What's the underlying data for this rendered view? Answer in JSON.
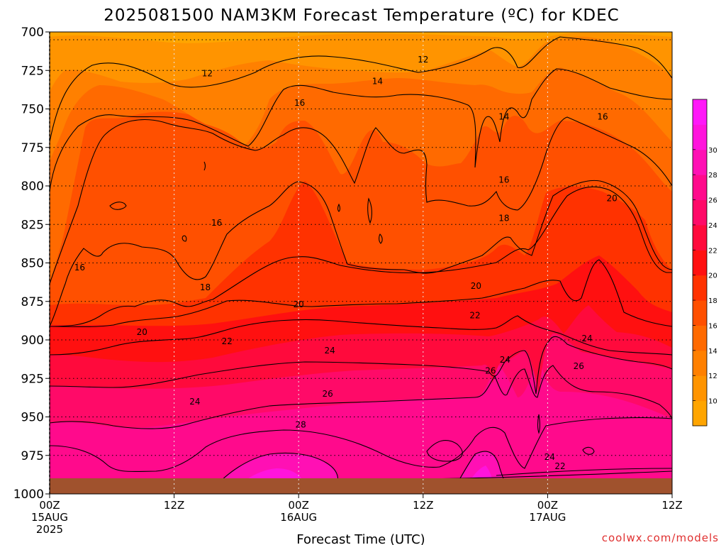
{
  "title": "2025081500 NAM3KM Forecast Temperature (ºC) for KDEC",
  "credit": "coolwx.com/models",
  "chart_data": {
    "type": "heatmap",
    "title": "2025081500 NAM3KM Forecast Temperature (ºC) for KDEC",
    "xlabel": "Forecast Time (UTC)",
    "ylabel": "",
    "x_ticks": [
      {
        "hour": 0,
        "line1": "00Z",
        "line2": "15AUG",
        "line3": "2025"
      },
      {
        "hour": 12,
        "line1": "12Z",
        "line2": "",
        "line3": ""
      },
      {
        "hour": 24,
        "line1": "00Z",
        "line2": "16AUG",
        "line3": ""
      },
      {
        "hour": 36,
        "line1": "12Z",
        "line2": "",
        "line3": ""
      },
      {
        "hour": 48,
        "line1": "00Z",
        "line2": "17AUG",
        "line3": ""
      },
      {
        "hour": 60,
        "line1": "12Z",
        "line2": "",
        "line3": ""
      }
    ],
    "xlim": [
      0,
      60
    ],
    "y_ticks": [
      700,
      725,
      750,
      775,
      800,
      825,
      850,
      875,
      900,
      925,
      950,
      975,
      1000
    ],
    "ylim": [
      700,
      1000
    ],
    "grid": true,
    "colorbar": {
      "ticks": [
        10,
        12,
        14,
        16,
        18,
        20,
        22,
        24,
        26,
        28,
        30
      ],
      "colors": [
        "#ffa500",
        "#ff9400",
        "#ff8000",
        "#ff6a00",
        "#ff5000",
        "#ff3200",
        "#ff1010",
        "#ff0a3c",
        "#ff0a68",
        "#ff0a8c",
        "#ff10b4",
        "#ff14dc",
        "#ff18f8"
      ]
    },
    "contour_labels": [
      {
        "value": 12,
        "hour": 15.2,
        "p": 727
      },
      {
        "value": 12,
        "hour": 36.0,
        "p": 718
      },
      {
        "value": 14,
        "hour": 31.6,
        "p": 732
      },
      {
        "value": 14,
        "hour": 43.8,
        "p": 755
      },
      {
        "value": 16,
        "hour": 24.1,
        "p": 746
      },
      {
        "value": 16,
        "hour": 53.3,
        "p": 755
      },
      {
        "value": 16,
        "hour": 43.8,
        "p": 796
      },
      {
        "value": 16,
        "hour": 16.1,
        "p": 824
      },
      {
        "value": 16,
        "hour": 2.9,
        "p": 853
      },
      {
        "value": 18,
        "hour": 43.8,
        "p": 821
      },
      {
        "value": 18,
        "hour": 15.0,
        "p": 866
      },
      {
        "value": 20,
        "hour": 54.2,
        "p": 808
      },
      {
        "value": 20,
        "hour": 41.1,
        "p": 865
      },
      {
        "value": 20,
        "hour": 24.0,
        "p": 877
      },
      {
        "value": 20,
        "hour": 8.9,
        "p": 895
      },
      {
        "value": 22,
        "hour": 41.0,
        "p": 884
      },
      {
        "value": 22,
        "hour": 17.1,
        "p": 901
      },
      {
        "value": 24,
        "hour": 27.0,
        "p": 907
      },
      {
        "value": 24,
        "hour": 51.8,
        "p": 899
      },
      {
        "value": 24,
        "hour": 43.9,
        "p": 913
      },
      {
        "value": 24,
        "hour": 14.0,
        "p": 940
      },
      {
        "value": 24,
        "hour": 48.2,
        "p": 976
      },
      {
        "value": 26,
        "hour": 42.5,
        "p": 920
      },
      {
        "value": 26,
        "hour": 51.0,
        "p": 917
      },
      {
        "value": 26,
        "hour": 26.8,
        "p": 935
      },
      {
        "value": 28,
        "hour": 24.2,
        "p": 955
      },
      {
        "value": 22,
        "hour": 49.2,
        "p": 982
      }
    ]
  }
}
